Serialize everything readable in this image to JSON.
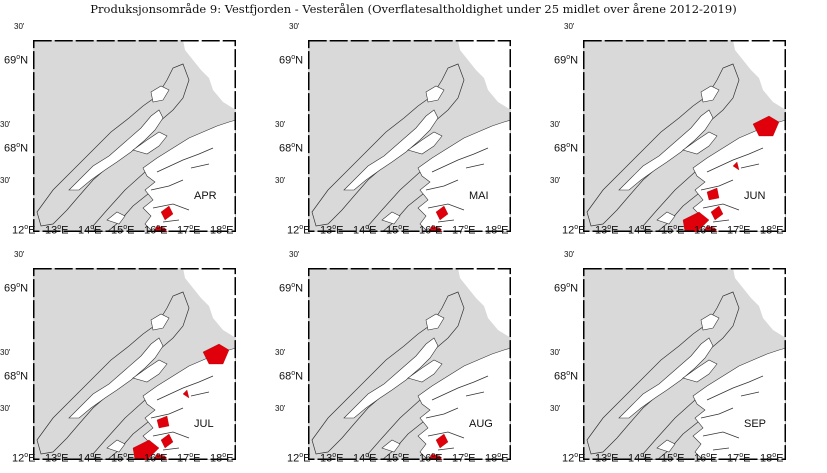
{
  "title": "Produksjonsområde 9: Vestfjorden - Vesterålen (Overflatesaltholdighet under 25 midlet over årene 2012-2019)",
  "axis": {
    "lat_labels": [
      {
        "deg": "69",
        "suffix": "N"
      },
      {
        "deg": "30'",
        "suffix": ""
      },
      {
        "deg": "68",
        "suffix": "N"
      },
      {
        "deg": "30'",
        "suffix": ""
      }
    ],
    "top_label": "30'",
    "lon_labels": [
      "12",
      "13",
      "14",
      "15",
      "16",
      "17",
      "18"
    ],
    "lon_suffix": "E"
  },
  "panels": [
    {
      "month": "APR",
      "red_level": 1
    },
    {
      "month": "MAI",
      "red_level": 1
    },
    {
      "month": "JUN",
      "red_level": 3
    },
    {
      "month": "JUL",
      "red_level": 3
    },
    {
      "month": "AUG",
      "red_level": 1
    },
    {
      "month": "SEP",
      "red_level": 0
    }
  ],
  "colors": {
    "sea": "#d9d9d9",
    "land": "#ffffff",
    "low_salinity": "#e0000b",
    "outline": "#333333"
  }
}
